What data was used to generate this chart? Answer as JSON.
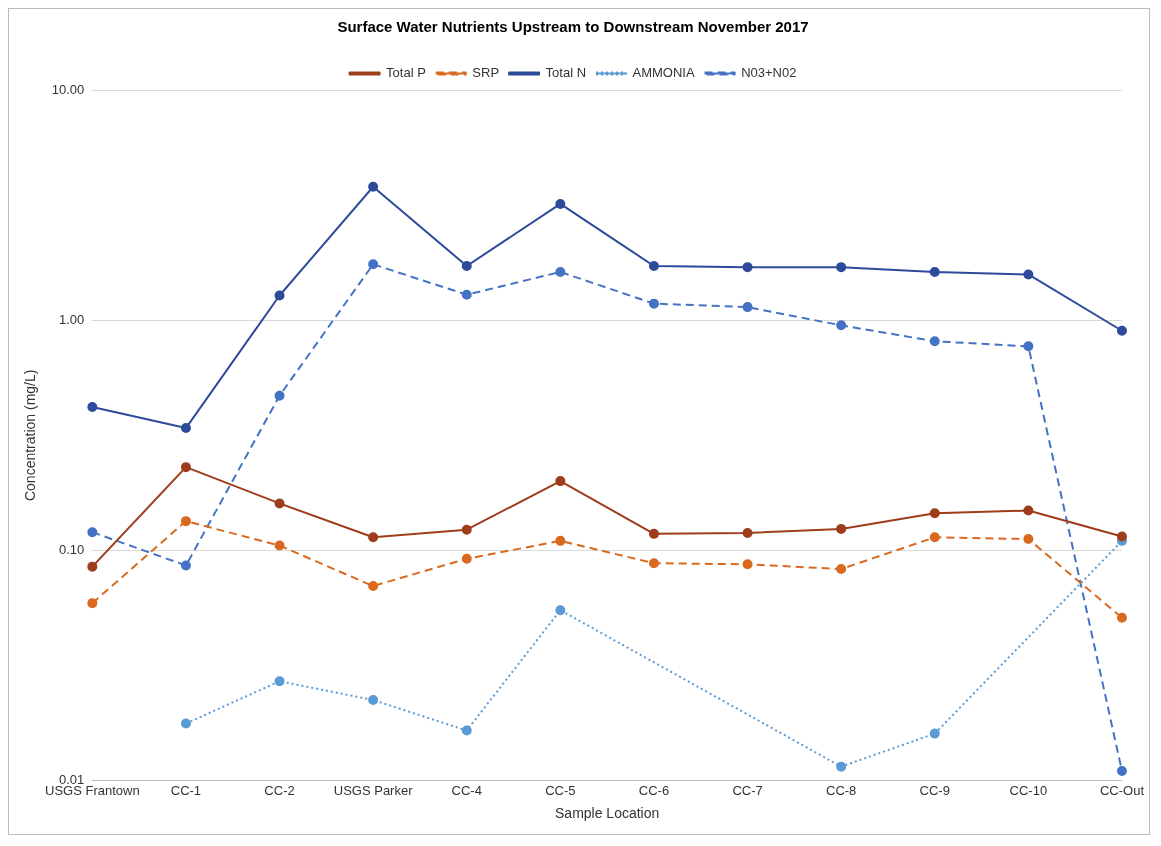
{
  "chart_data": {
    "type": "line",
    "title": "Surface Water Nutrients Upstream to Downstream November 2017",
    "xlabel": "Sample Location",
    "ylabel": "Concentration (mg/L)",
    "categories": [
      "USGS Frantown",
      "CC-1",
      "CC-2",
      "USGS Parker",
      "CC-4",
      "CC-5",
      "CC-6",
      "CC-7",
      "CC-8",
      "CC-9",
      "CC-10",
      "CC-Out"
    ],
    "series": [
      {
        "name": "Total P",
        "color": "#9e3d1b",
        "line_style": "solid",
        "values": [
          0.085,
          0.23,
          0.16,
          0.114,
          0.123,
          0.2,
          0.118,
          0.119,
          0.124,
          0.145,
          0.149,
          0.115
        ]
      },
      {
        "name": "SRP",
        "color": "#d9691e",
        "line_style": "dashed",
        "values": [
          0.059,
          0.134,
          0.105,
          0.07,
          0.092,
          0.11,
          0.088,
          0.087,
          0.083,
          0.114,
          0.112,
          0.051
        ]
      },
      {
        "name": "Total N",
        "color": "#2e4a9a",
        "line_style": "solid",
        "values": [
          0.42,
          0.34,
          1.28,
          3.8,
          1.72,
          3.2,
          1.72,
          1.7,
          1.7,
          1.62,
          1.58,
          0.9
        ]
      },
      {
        "name": "AMMONIA",
        "color": "#5b9bd5",
        "line_style": "dotted",
        "values": [
          null,
          0.0177,
          0.027,
          0.0224,
          0.0165,
          0.055,
          null,
          null,
          0.0115,
          0.016,
          null,
          0.11
        ]
      },
      {
        "name": "N03+N02",
        "color": "#4472c4",
        "line_style": "dashed",
        "values": [
          0.12,
          0.086,
          0.47,
          1.75,
          1.29,
          1.62,
          1.18,
          1.14,
          0.95,
          0.81,
          0.77,
          0.011
        ]
      }
    ],
    "log": "y",
    "ylim": [
      0.01,
      10
    ],
    "yticks": [
      {
        "value": 0.01,
        "label": "0.01"
      },
      {
        "value": 0.1,
        "label": "0.10"
      },
      {
        "value": 1,
        "label": "1.00"
      },
      {
        "value": 10,
        "label": "10.00"
      }
    ],
    "grid": "y",
    "legend": "top",
    "marker": "circle"
  }
}
